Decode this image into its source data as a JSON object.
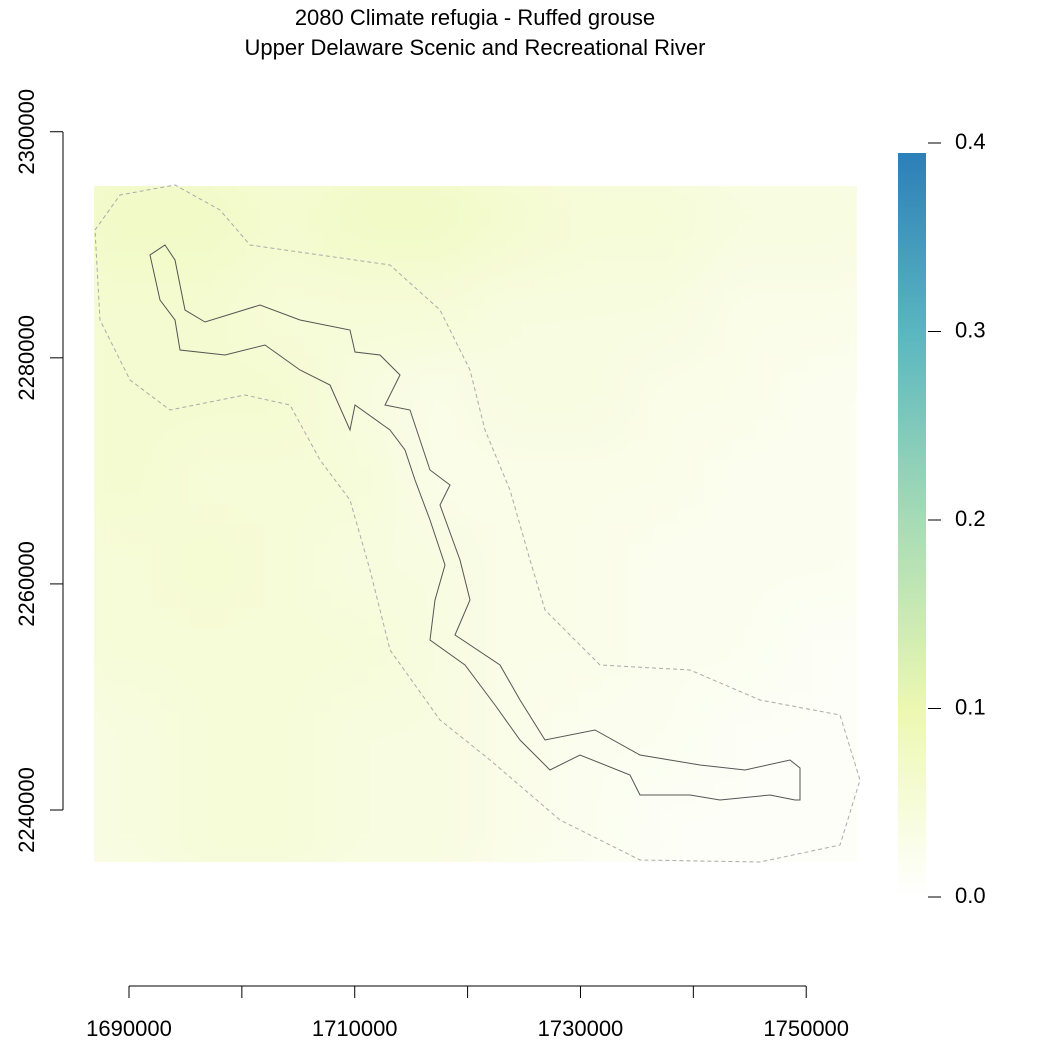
{
  "chart_data": {
    "type": "raster",
    "title": "2080 Climate refugia - Ruffed grouse",
    "subtitle": "Upper Delaware Scenic and Recreational River",
    "x": [
      1690280,
      1697040,
      1703800,
      1710560,
      1717320,
      1724080,
      1730840,
      1737600,
      1744360,
      1751120
    ],
    "y": [
      2291463,
      2283988,
      2276513,
      2269038,
      2261563,
      2254088,
      2246613,
      2239138
    ],
    "values": [
      [
        0.07,
        0.07,
        0.06,
        0.07,
        0.07,
        0.06,
        0.05,
        0.05,
        0.04,
        0.04
      ],
      [
        0.06,
        0.06,
        0.05,
        0.05,
        0.05,
        0.04,
        0.04,
        0.04,
        0.03,
        0.03
      ],
      [
        0.06,
        0.06,
        0.06,
        0.04,
        0.03,
        0.04,
        0.04,
        0.03,
        0.03,
        0.02
      ],
      [
        0.06,
        0.05,
        0.05,
        0.05,
        0.03,
        0.03,
        0.03,
        0.03,
        0.02,
        0.02
      ],
      [
        0.05,
        0.06,
        0.05,
        0.04,
        0.04,
        0.03,
        0.03,
        0.02,
        0.02,
        0.02
      ],
      [
        0.05,
        0.05,
        0.05,
        0.05,
        0.04,
        0.03,
        0.03,
        0.02,
        0.02,
        0.01
      ],
      [
        0.04,
        0.05,
        0.05,
        0.04,
        0.04,
        0.03,
        0.02,
        0.02,
        0.01,
        0.01
      ],
      [
        0.04,
        0.05,
        0.05,
        0.04,
        0.04,
        0.03,
        0.02,
        0.01,
        0.01,
        0.01
      ]
    ],
    "xlim": [
      1686900,
      1754500
    ],
    "ylim": [
      2235400,
      2295200
    ],
    "xticks": [
      1690000,
      {
        "value": 1700000,
        "label": null
      },
      1710000,
      {
        "value": 1720000,
        "label": null
      },
      1730000,
      {
        "value": 1740000,
        "label": null
      },
      1750000
    ],
    "yticks": [
      2240000,
      2260000,
      2280000,
      2300000
    ],
    "zlim": [
      0,
      0.4
    ],
    "zticks": [
      {
        "value": 0,
        "label": "0.0"
      },
      0.1,
      0.2,
      0.3,
      0.4
    ],
    "colorscale": [
      "#ffffff",
      "#edf8b1",
      "#a8dcb5",
      "#5cb8c0",
      "#2c7fb8"
    ]
  }
}
